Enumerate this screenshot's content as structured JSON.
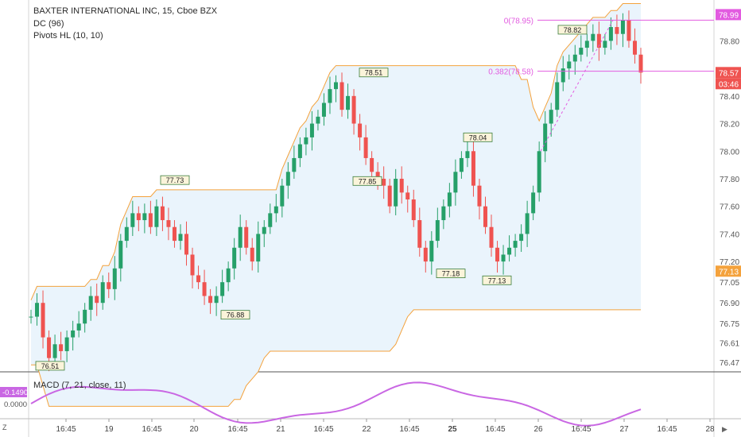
{
  "header": {
    "title": "BAXTER INTERNATIONAL INC, 15, Cboe BZX",
    "indicators": [
      "DC (96)",
      "Pivots HL (10, 10)"
    ]
  },
  "macd": {
    "label": "MACD (7, 21, close, 11)",
    "current_value": "-0.1490",
    "zero_label": "0.0000",
    "color": "#c967e3"
  },
  "price_axis": {
    "ticks": [
      "78.99",
      "78.80",
      "78.57",
      "78.40",
      "78.20",
      "78.00",
      "77.80",
      "77.60",
      "77.40",
      "77.20",
      "77.13",
      "77.05",
      "76.90",
      "76.75",
      "76.61",
      "76.47"
    ],
    "last_price_label": "78.57",
    "countdown_label": "03:46",
    "dc_lower_label": "77.13"
  },
  "time_axis": {
    "ticks": [
      "16:45",
      "19",
      "16:45",
      "20",
      "16:45",
      "21",
      "16:45",
      "22",
      "16:45",
      "25",
      "16:45",
      "26",
      "16:45",
      "27",
      "16:45",
      "28"
    ]
  },
  "pivots": {
    "highs": [
      "77.73",
      "78.51",
      "78.04",
      "78.82"
    ],
    "lows": [
      "76.51",
      "76.88",
      "77.85",
      "77.18",
      "77.13"
    ]
  },
  "fib_labels": [
    "0(78.95)",
    "0.382(78.58)"
  ],
  "colors": {
    "up": "#26a069",
    "down": "#ef5350",
    "donchian": "#f4a23c",
    "fib": "#e25be0",
    "fill": "#eaf4fc"
  },
  "chart_data": {
    "type": "candlestick",
    "title": "BAXTER INTERNATIONAL INC, 15, Cboe BZX",
    "close_series": [
      76.8,
      76.9,
      76.65,
      76.5,
      76.6,
      76.55,
      76.65,
      76.7,
      76.75,
      76.85,
      76.95,
      76.9,
      77.05,
      77.0,
      77.15,
      77.35,
      77.45,
      77.55,
      77.5,
      77.55,
      77.45,
      77.6,
      77.5,
      77.45,
      77.35,
      77.4,
      77.25,
      77.1,
      77.05,
      76.95,
      76.9,
      76.95,
      77.05,
      77.15,
      77.3,
      77.45,
      77.3,
      77.2,
      77.4,
      77.45,
      77.55,
      77.6,
      77.75,
      77.85,
      77.95,
      78.05,
      78.1,
      78.2,
      78.25,
      78.35,
      78.45,
      78.5,
      78.3,
      78.4,
      78.2,
      78.1,
      77.95,
      77.85,
      77.8,
      77.75,
      77.6,
      77.8,
      77.7,
      77.65,
      77.5,
      77.3,
      77.2,
      77.35,
      77.5,
      77.6,
      77.7,
      77.85,
      77.95,
      78.0,
      77.75,
      77.6,
      77.45,
      77.3,
      77.2,
      77.25,
      77.3,
      77.35,
      77.4,
      77.55,
      77.7,
      78.0,
      78.2,
      78.3,
      78.5,
      78.6,
      78.65,
      78.7,
      78.75,
      78.8,
      78.85,
      78.75,
      78.8,
      78.9,
      78.85,
      78.95,
      78.8,
      78.7,
      78.57
    ],
    "pivot_highs": [
      77.73,
      78.51,
      78.04,
      78.82
    ],
    "pivot_lows": [
      76.51,
      76.88,
      77.85,
      77.18,
      77.13
    ],
    "fib_levels": [
      {
        "label": "0",
        "value": 78.95
      },
      {
        "label": "0.382",
        "value": 78.58
      }
    ],
    "last_price": 78.57,
    "ylim": [
      76.4,
      79.05
    ],
    "macd_range": [
      -0.3,
      0.3
    ]
  }
}
